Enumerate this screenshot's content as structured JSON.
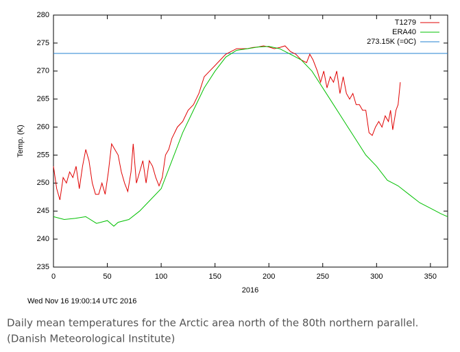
{
  "chart_data": {
    "type": "line",
    "ylabel": "Temp. (K)",
    "xlabel": "2016",
    "timestamp": "Wed Nov 16 19:00:14 UTC 2016",
    "caption": [
      "Daily mean temperatures for the Arctic area north of the 80th northern parallel.",
      "(Danish Meteorological Institute)"
    ],
    "xlim": [
      0,
      366
    ],
    "ylim": [
      235,
      280
    ],
    "xticks": [
      0,
      50,
      100,
      150,
      200,
      250,
      300,
      350
    ],
    "yticks": [
      235,
      240,
      245,
      250,
      255,
      260,
      265,
      270,
      275,
      280
    ],
    "legend": "top-right",
    "series": [
      {
        "name": "T1279",
        "color": "#e00000",
        "x": [
          0,
          3,
          6,
          9,
          12,
          15,
          18,
          21,
          24,
          27,
          30,
          33,
          36,
          39,
          42,
          45,
          48,
          51,
          54,
          57,
          60,
          63,
          66,
          69,
          72,
          74,
          77,
          80,
          83,
          86,
          89,
          92,
          95,
          98,
          101,
          104,
          107,
          110,
          115,
          120,
          125,
          130,
          135,
          140,
          145,
          150,
          155,
          160,
          165,
          170,
          175,
          180,
          185,
          190,
          195,
          200,
          205,
          210,
          215,
          220,
          225,
          230,
          235,
          238,
          241,
          245,
          248,
          251,
          254,
          257,
          260,
          263,
          266,
          269,
          272,
          275,
          278,
          281,
          284,
          287,
          290,
          293,
          296,
          299,
          302,
          305,
          308,
          311,
          313,
          315,
          318,
          320,
          322
        ],
        "values": [
          253,
          249,
          247,
          251,
          250,
          252,
          251,
          253,
          249,
          253,
          256,
          254,
          250,
          248,
          248,
          250,
          248,
          252,
          257,
          256,
          255,
          252,
          250,
          248.5,
          252,
          257,
          250,
          252,
          254,
          250,
          254,
          253,
          251,
          249.5,
          251,
          255,
          256,
          258,
          260,
          261,
          263,
          264,
          266,
          269,
          270,
          271,
          272,
          273,
          273.5,
          274,
          274,
          274,
          274.2,
          274.3,
          274.5,
          274.3,
          274,
          274.2,
          274.5,
          273.5,
          273,
          272,
          271.5,
          273,
          272,
          270,
          268,
          270,
          267,
          269,
          268,
          270,
          266,
          269,
          266,
          265,
          266,
          264,
          264,
          263,
          263,
          259,
          258.5,
          260,
          261,
          260,
          262,
          261,
          263,
          259.5,
          263,
          264,
          268
        ]
      },
      {
        "name": "ERA40",
        "color": "#00c000",
        "x": [
          0,
          10,
          20,
          30,
          40,
          50,
          56,
          60,
          70,
          80,
          90,
          100,
          110,
          120,
          130,
          140,
          150,
          160,
          170,
          180,
          190,
          200,
          210,
          220,
          230,
          240,
          250,
          260,
          270,
          280,
          290,
          300,
          310,
          315,
          320,
          330,
          340,
          350,
          360,
          366
        ],
        "values": [
          244,
          243.5,
          243.7,
          244,
          242.8,
          243.3,
          242.3,
          243,
          243.5,
          245,
          247,
          249,
          254,
          259,
          263,
          267,
          270,
          272.5,
          273.7,
          274,
          274.3,
          274.4,
          274,
          273,
          272,
          270,
          267,
          264,
          261,
          258,
          255,
          253,
          250.5,
          250,
          249.5,
          248,
          246.5,
          245.5,
          244.5,
          244
        ]
      }
    ],
    "reference_line": {
      "name": "273.15K (=0C)",
      "color": "#2080d0",
      "value": 273.15
    }
  }
}
